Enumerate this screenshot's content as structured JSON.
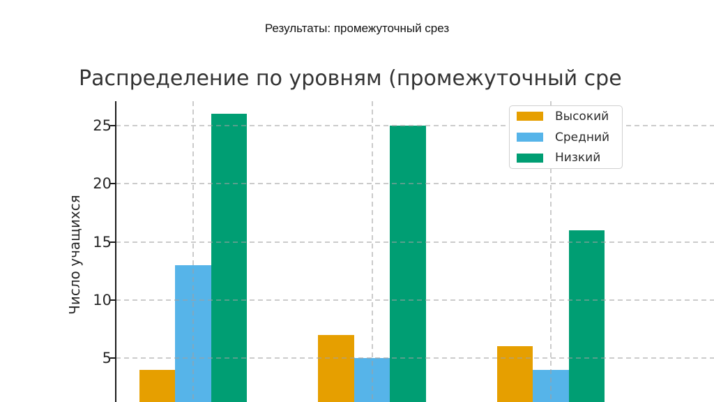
{
  "slide": {
    "title": "Результаты: промежуточный срез"
  },
  "chart": {
    "title": "Распределение по уровням (промежуточный сре",
    "ylabel": "Число учащихся",
    "yticks": [
      5,
      10,
      15,
      20,
      25
    ],
    "legend": [
      {
        "label": "Высокий",
        "color": "#E69F00"
      },
      {
        "label": "Средний",
        "color": "#56B4E9"
      },
      {
        "label": "Низкий",
        "color": "#009E73"
      }
    ]
  },
  "chart_data": {
    "type": "bar",
    "categories": [
      "",
      "",
      ""
    ],
    "series": [
      {
        "name": "Высокий",
        "color": "#E69F00",
        "values": [
          4,
          7,
          6
        ]
      },
      {
        "name": "Средний",
        "color": "#56B4E9",
        "values": [
          13,
          5,
          4
        ]
      },
      {
        "name": "Низкий",
        "color": "#009E73",
        "values": [
          26,
          25,
          16
        ]
      }
    ],
    "title": "Распределение по уровням (промежуточный сре",
    "xlabel": "",
    "ylabel": "Число учащихся",
    "ylim": [
      0,
      27.1
    ],
    "yticks": [
      5,
      10,
      15,
      20,
      25
    ],
    "grid": true,
    "grid_style": "dashed",
    "legend_position": "upper right",
    "x_tick_labels_visible": false,
    "bottom_clipped": true
  }
}
